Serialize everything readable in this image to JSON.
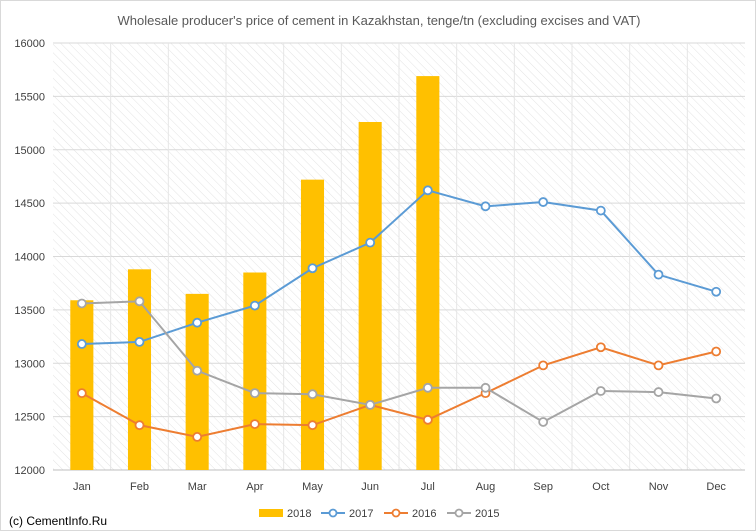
{
  "chart_data": {
    "type": "bar+line",
    "title": "Wholesale producer's price of cement in Kazakhstan, tenge/tn (excluding excises and VAT)",
    "xlabel": "",
    "ylabel": "",
    "categories": [
      "Jan",
      "Feb",
      "Mar",
      "Apr",
      "May",
      "Jun",
      "Jul",
      "Aug",
      "Sep",
      "Oct",
      "Nov",
      "Dec"
    ],
    "ylim": [
      12000,
      16000
    ],
    "yticks": [
      "12000",
      "12500",
      "13000",
      "13500",
      "14000",
      "14500",
      "15000",
      "15500",
      "16000"
    ],
    "grid": "horizontal, hatched plot background",
    "legend_position": "bottom",
    "series": [
      {
        "name": "2018",
        "kind": "bar",
        "color": "#FFC000",
        "values": [
          13590,
          13880,
          13650,
          13850,
          14720,
          15260,
          15690,
          null,
          null,
          null,
          null,
          null
        ]
      },
      {
        "name": "2017",
        "kind": "line",
        "color": "#5B9BD5",
        "values": [
          13180,
          13200,
          13380,
          13540,
          13890,
          14130,
          14620,
          14470,
          14510,
          14430,
          13830,
          13670
        ]
      },
      {
        "name": "2016",
        "kind": "line",
        "color": "#ED7D31",
        "values": [
          12720,
          12420,
          12310,
          12430,
          12420,
          12610,
          12470,
          12720,
          12980,
          13150,
          12980,
          13110
        ]
      },
      {
        "name": "2015",
        "kind": "line",
        "color": "#A5A5A5",
        "values": [
          13560,
          13580,
          12930,
          12720,
          12710,
          12610,
          12770,
          12770,
          12450,
          12740,
          12730,
          12670
        ]
      }
    ]
  },
  "footer": {
    "copyright": "(c) CementInfo.Ru"
  }
}
